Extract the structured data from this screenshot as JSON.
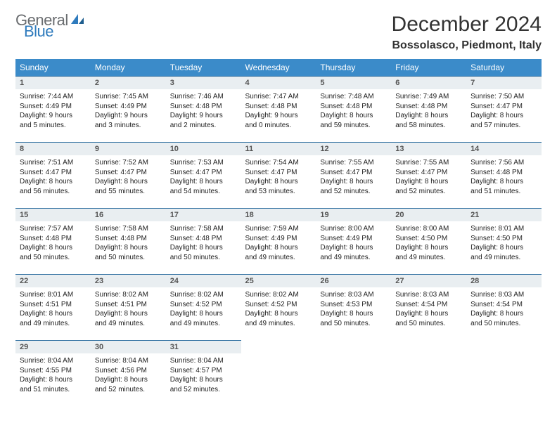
{
  "brand": {
    "word1": "General",
    "word2": "Blue",
    "color1": "#6a6d70",
    "color2": "#2f7bbd"
  },
  "title": "December 2024",
  "location": "Bossolasco, Piedmont, Italy",
  "header_bg": "#3b8bc9",
  "daynum_bg": "#e9eef1",
  "daynum_border": "#2f6fa0",
  "day_names": [
    "Sunday",
    "Monday",
    "Tuesday",
    "Wednesday",
    "Thursday",
    "Friday",
    "Saturday"
  ],
  "weeks": [
    [
      {
        "n": "1",
        "sr": "7:44 AM",
        "ss": "4:49 PM",
        "dl": "9 hours and 5 minutes."
      },
      {
        "n": "2",
        "sr": "7:45 AM",
        "ss": "4:49 PM",
        "dl": "9 hours and 3 minutes."
      },
      {
        "n": "3",
        "sr": "7:46 AM",
        "ss": "4:48 PM",
        "dl": "9 hours and 2 minutes."
      },
      {
        "n": "4",
        "sr": "7:47 AM",
        "ss": "4:48 PM",
        "dl": "9 hours and 0 minutes."
      },
      {
        "n": "5",
        "sr": "7:48 AM",
        "ss": "4:48 PM",
        "dl": "8 hours and 59 minutes."
      },
      {
        "n": "6",
        "sr": "7:49 AM",
        "ss": "4:48 PM",
        "dl": "8 hours and 58 minutes."
      },
      {
        "n": "7",
        "sr": "7:50 AM",
        "ss": "4:47 PM",
        "dl": "8 hours and 57 minutes."
      }
    ],
    [
      {
        "n": "8",
        "sr": "7:51 AM",
        "ss": "4:47 PM",
        "dl": "8 hours and 56 minutes."
      },
      {
        "n": "9",
        "sr": "7:52 AM",
        "ss": "4:47 PM",
        "dl": "8 hours and 55 minutes."
      },
      {
        "n": "10",
        "sr": "7:53 AM",
        "ss": "4:47 PM",
        "dl": "8 hours and 54 minutes."
      },
      {
        "n": "11",
        "sr": "7:54 AM",
        "ss": "4:47 PM",
        "dl": "8 hours and 53 minutes."
      },
      {
        "n": "12",
        "sr": "7:55 AM",
        "ss": "4:47 PM",
        "dl": "8 hours and 52 minutes."
      },
      {
        "n": "13",
        "sr": "7:55 AM",
        "ss": "4:47 PM",
        "dl": "8 hours and 52 minutes."
      },
      {
        "n": "14",
        "sr": "7:56 AM",
        "ss": "4:48 PM",
        "dl": "8 hours and 51 minutes."
      }
    ],
    [
      {
        "n": "15",
        "sr": "7:57 AM",
        "ss": "4:48 PM",
        "dl": "8 hours and 50 minutes."
      },
      {
        "n": "16",
        "sr": "7:58 AM",
        "ss": "4:48 PM",
        "dl": "8 hours and 50 minutes."
      },
      {
        "n": "17",
        "sr": "7:58 AM",
        "ss": "4:48 PM",
        "dl": "8 hours and 50 minutes."
      },
      {
        "n": "18",
        "sr": "7:59 AM",
        "ss": "4:49 PM",
        "dl": "8 hours and 49 minutes."
      },
      {
        "n": "19",
        "sr": "8:00 AM",
        "ss": "4:49 PM",
        "dl": "8 hours and 49 minutes."
      },
      {
        "n": "20",
        "sr": "8:00 AM",
        "ss": "4:50 PM",
        "dl": "8 hours and 49 minutes."
      },
      {
        "n": "21",
        "sr": "8:01 AM",
        "ss": "4:50 PM",
        "dl": "8 hours and 49 minutes."
      }
    ],
    [
      {
        "n": "22",
        "sr": "8:01 AM",
        "ss": "4:51 PM",
        "dl": "8 hours and 49 minutes."
      },
      {
        "n": "23",
        "sr": "8:02 AM",
        "ss": "4:51 PM",
        "dl": "8 hours and 49 minutes."
      },
      {
        "n": "24",
        "sr": "8:02 AM",
        "ss": "4:52 PM",
        "dl": "8 hours and 49 minutes."
      },
      {
        "n": "25",
        "sr": "8:02 AM",
        "ss": "4:52 PM",
        "dl": "8 hours and 49 minutes."
      },
      {
        "n": "26",
        "sr": "8:03 AM",
        "ss": "4:53 PM",
        "dl": "8 hours and 50 minutes."
      },
      {
        "n": "27",
        "sr": "8:03 AM",
        "ss": "4:54 PM",
        "dl": "8 hours and 50 minutes."
      },
      {
        "n": "28",
        "sr": "8:03 AM",
        "ss": "4:54 PM",
        "dl": "8 hours and 50 minutes."
      }
    ],
    [
      {
        "n": "29",
        "sr": "8:04 AM",
        "ss": "4:55 PM",
        "dl": "8 hours and 51 minutes."
      },
      {
        "n": "30",
        "sr": "8:04 AM",
        "ss": "4:56 PM",
        "dl": "8 hours and 52 minutes."
      },
      {
        "n": "31",
        "sr": "8:04 AM",
        "ss": "4:57 PM",
        "dl": "8 hours and 52 minutes."
      },
      null,
      null,
      null,
      null
    ]
  ]
}
